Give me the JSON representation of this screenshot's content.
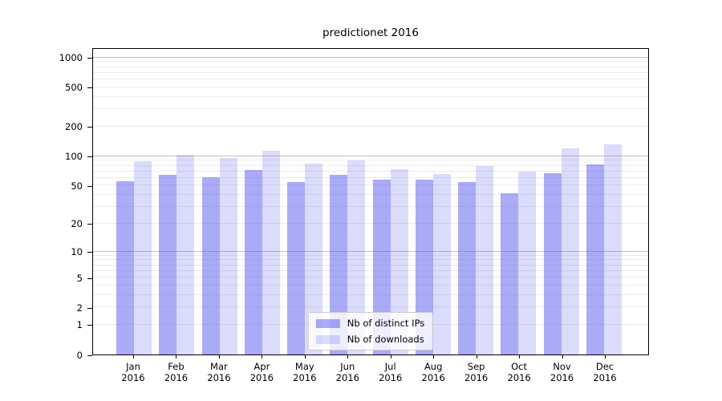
{
  "figure": {
    "title": "predictionet 2016",
    "background": "#ffffff"
  },
  "legend": {
    "position": "lower center",
    "items": [
      {
        "label": "Nb of distinct IPs",
        "color": "rgba(85,85,238,0.5)"
      },
      {
        "label": "Nb of downloads",
        "color": "rgba(85,85,238,0.21)"
      }
    ]
  },
  "chart_data": {
    "type": "bar",
    "title": "predictionet 2016",
    "categories": [
      "Jan 2016",
      "Feb 2016",
      "Mar 2016",
      "Apr 2016",
      "May 2016",
      "Jun 2016",
      "Jul 2016",
      "Aug 2016",
      "Sep 2016",
      "Oct 2016",
      "Nov 2016",
      "Dec 2016"
    ],
    "series": [
      {
        "name": "Nb of distinct IPs",
        "color": "rgba(85,85,238,0.5)",
        "values": [
          55,
          65,
          61,
          72,
          54,
          64,
          58,
          57,
          54,
          42,
          67,
          83
        ]
      },
      {
        "name": "Nb of downloads",
        "color": "rgba(85,85,238,0.21)",
        "values": [
          89,
          103,
          95,
          113,
          84,
          91,
          74,
          66,
          79,
          69,
          120,
          131
        ]
      }
    ],
    "xlabel": "",
    "ylabel": "",
    "yscale": "log1p",
    "ylim": [
      0,
      1270
    ],
    "y_ticks": [
      0,
      1,
      2,
      5,
      10,
      20,
      50,
      100,
      200,
      500,
      1000
    ],
    "grid": {
      "orientation": "horizontal",
      "minor": [
        1,
        2,
        3,
        4,
        5,
        6,
        7,
        8,
        9,
        20,
        30,
        40,
        50,
        60,
        70,
        80,
        90,
        200,
        300,
        400,
        500,
        600,
        700,
        800,
        900
      ],
      "major": [
        10,
        100,
        1000
      ],
      "minor_color": "#ececec",
      "major_color": "#c2c2c2"
    },
    "legend_position": "lower center"
  }
}
